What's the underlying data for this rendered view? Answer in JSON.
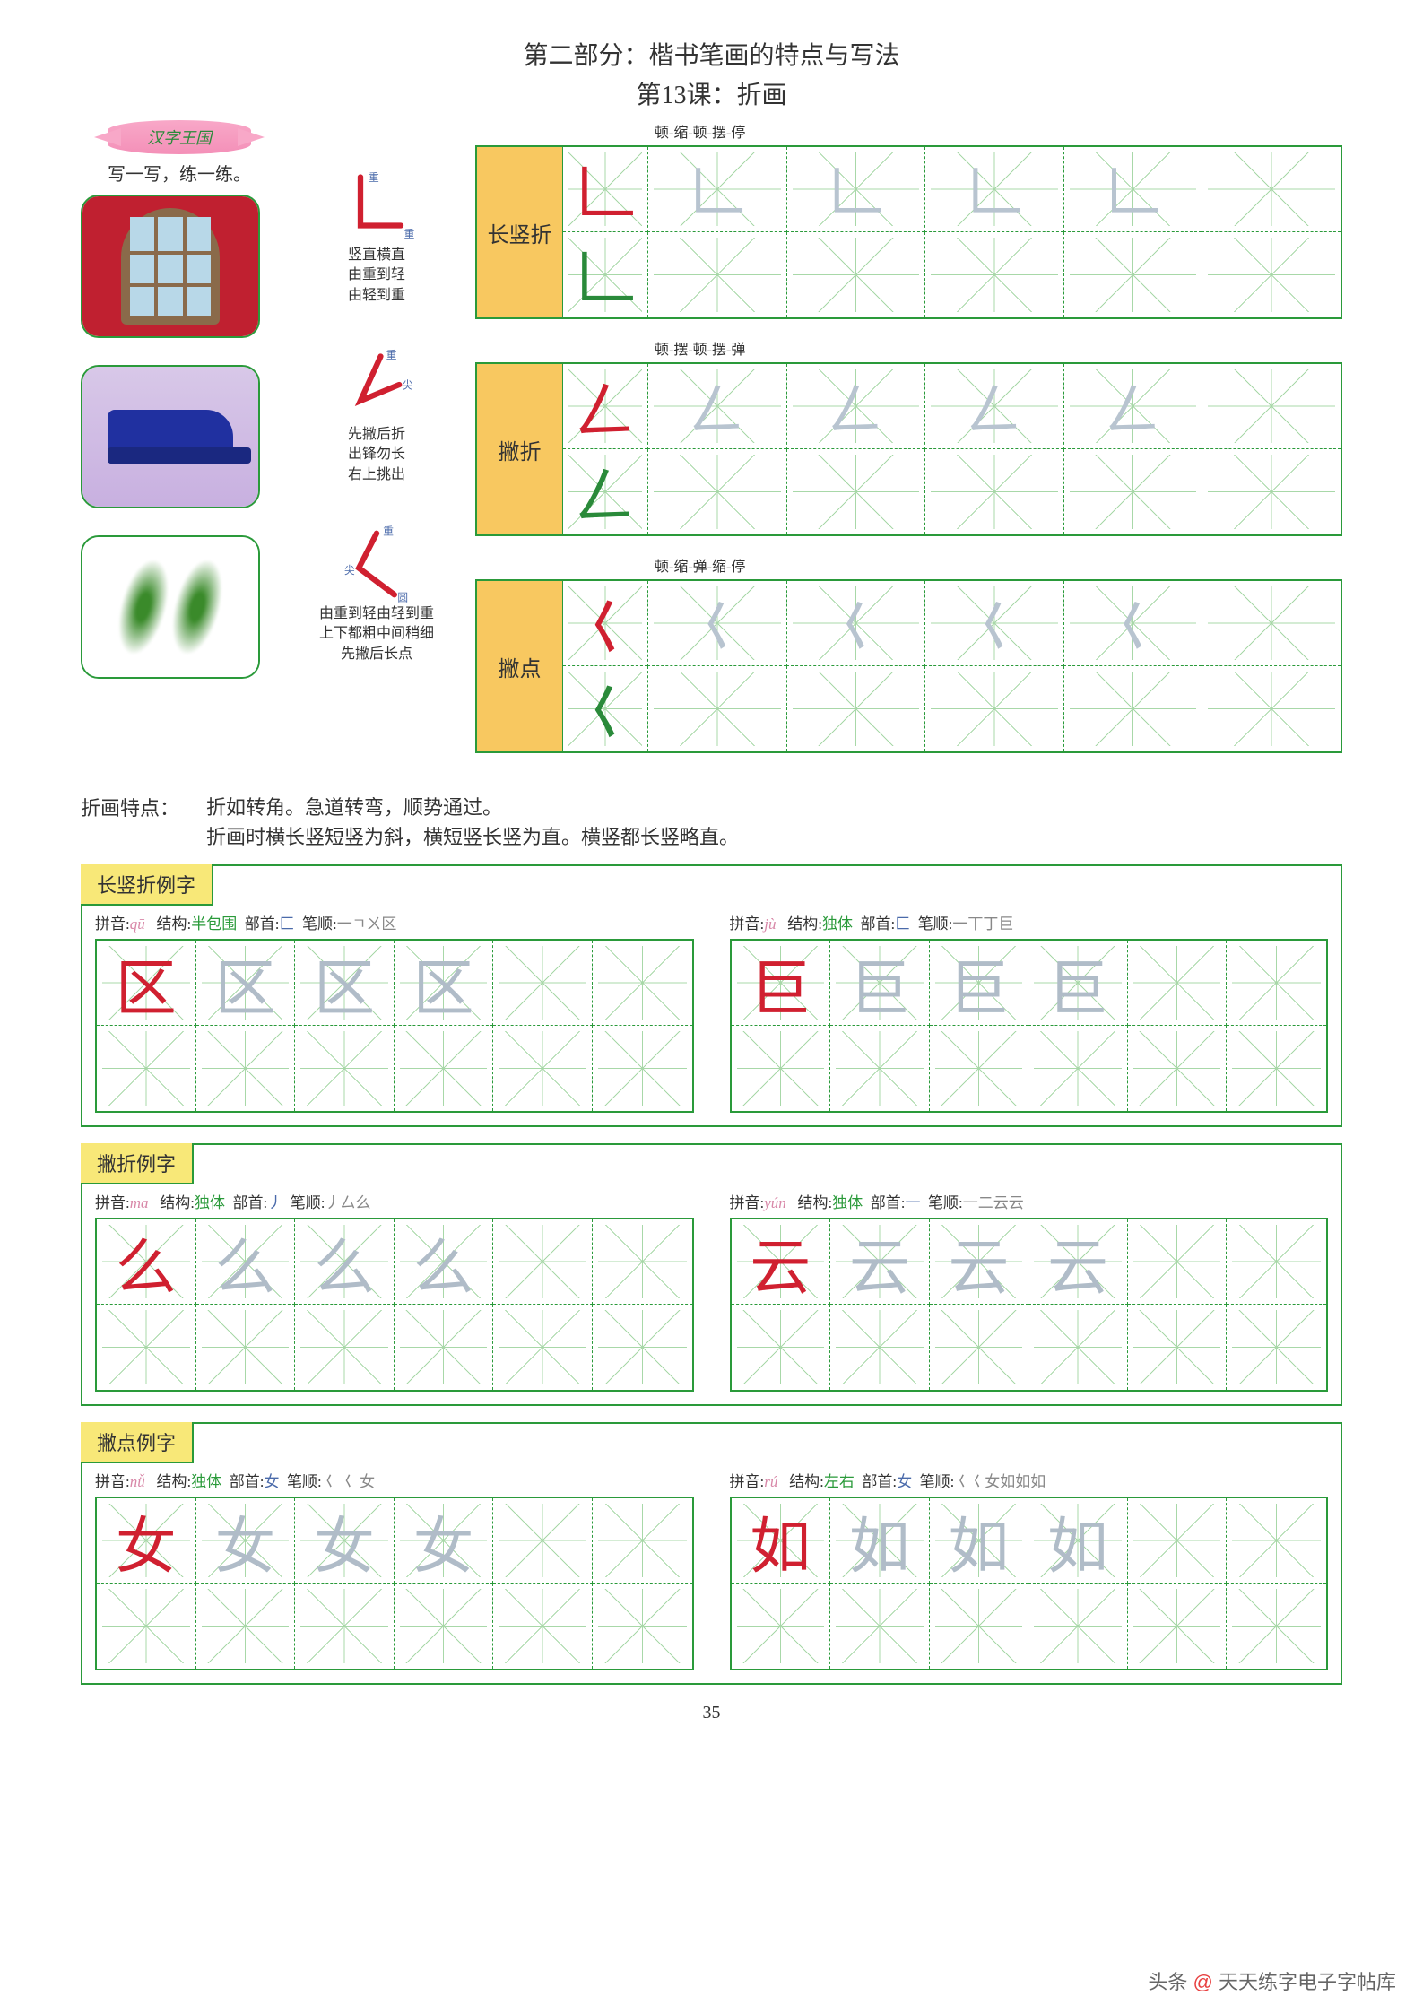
{
  "header": {
    "title": "第二部分：楷书笔画的特点与写法",
    "subtitle": "第13课：折画"
  },
  "banner_text": "汉字王国",
  "practice_label": "写一写，练一练。",
  "strokes": [
    {
      "name": "长竖折",
      "hint": "顿-缩-顿-摆-停",
      "annotations": [
        "重",
        "重"
      ],
      "desc": "竖直横直\n由重到轻\n由轻到重",
      "sample_colors": [
        "#d02030",
        "#2a8a3a"
      ],
      "stroke_char": "𠃊"
    },
    {
      "name": "撇折",
      "hint": "顿-摆-顿-摆-弹",
      "annotations": [
        "重",
        "尖"
      ],
      "desc": "先撇后折\n出锋勿长\n右上挑出",
      "sample_colors": [
        "#d02030",
        "#2a8a3a"
      ],
      "stroke_char": "𠃋"
    },
    {
      "name": "撇点",
      "hint": "顿-缩-弹-缩-停",
      "annotations": [
        "重",
        "尖",
        "圆"
      ],
      "desc": "由重到轻由轻到重\n上下都粗中间稍细\n先撇后长点",
      "sample_colors": [
        "#d02030",
        "#2a8a3a"
      ],
      "stroke_char": "𡿨"
    }
  ],
  "feature": {
    "label": "折画特点：",
    "text": "折如转角。急道转弯，顺势通过。\n折画时横长竖短竖为斜，横短竖长竖为直。横竖都长竖略直。"
  },
  "examples": [
    {
      "title": "长竖折例字",
      "pairs": [
        {
          "pinyin": "qū",
          "structure": "半包围",
          "radical": "匚",
          "order": "一ㄱㄨ区",
          "char": "区"
        },
        {
          "pinyin": "jù",
          "structure": "独体",
          "radical": "匚",
          "order": "一丅丁巨",
          "char": "巨"
        }
      ]
    },
    {
      "title": "撇折例字",
      "pairs": [
        {
          "pinyin": "ma",
          "structure": "独体",
          "radical": "丿",
          "order": "丿厶么",
          "char": "么"
        },
        {
          "pinyin": "yún",
          "structure": "独体",
          "radical": "一",
          "order": "一二云云",
          "char": "云"
        }
      ]
    },
    {
      "title": "撇点例字",
      "pairs": [
        {
          "pinyin": "nǚ",
          "structure": "独体",
          "radical": "女",
          "order": "𡿨 𡿨 女",
          "char": "女"
        },
        {
          "pinyin": "rú",
          "structure": "左右",
          "radical": "女",
          "order": "𡿨𡿨女如如如",
          "char": "如"
        }
      ]
    }
  ],
  "labels": {
    "pinyin": "拼音:",
    "structure": "结构:",
    "radical": "部首:",
    "order": "笔顺:"
  },
  "page_number": "35",
  "watermark": {
    "prefix": "头条",
    "at": "@",
    "name": "天天练字电子字帖库"
  },
  "colors": {
    "green": "#2a9a3a",
    "yellow_tab": "#f8e878",
    "orange_tab": "#f8c860",
    "red": "#d02030",
    "trace": "#b0bcc8"
  }
}
